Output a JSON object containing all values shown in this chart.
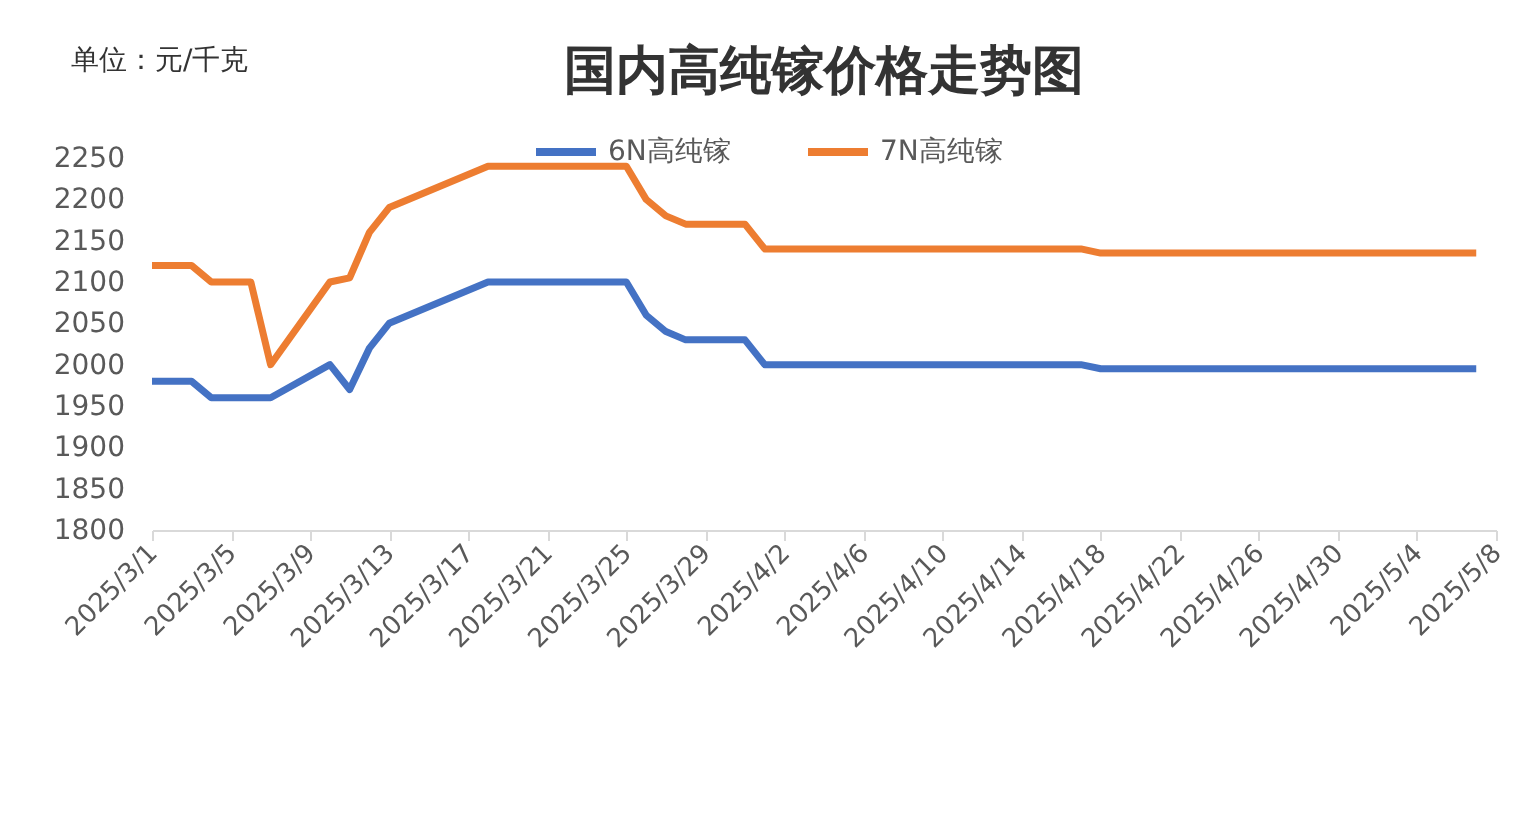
{
  "chart_data": {
    "type": "line",
    "title": "国内高纯镓价格走势图",
    "ylabel": "单位：元/千克",
    "xlim": [
      "2025-03-01",
      "2025-05-08"
    ],
    "xticks": [
      {
        "value": "2025-03-01",
        "label": "2025/3/1"
      },
      {
        "value": "2025-03-05",
        "label": "2025/3/5"
      },
      {
        "value": "2025-03-09",
        "label": "2025/3/9"
      },
      {
        "value": "2025-03-13",
        "label": "2025/3/13"
      },
      {
        "value": "2025-03-17",
        "label": "2025/3/17"
      },
      {
        "value": "2025-03-21",
        "label": "2025/3/21"
      },
      {
        "value": "2025-03-25",
        "label": "2025/3/25"
      },
      {
        "value": "2025-03-29",
        "label": "2025/3/29"
      },
      {
        "value": "2025-04-02",
        "label": "2025/4/2"
      },
      {
        "value": "2025-04-06",
        "label": "2025/4/6"
      },
      {
        "value": "2025-04-10",
        "label": "2025/4/10"
      },
      {
        "value": "2025-04-14",
        "label": "2025/4/14"
      },
      {
        "value": "2025-04-18",
        "label": "2025/4/18"
      },
      {
        "value": "2025-04-22",
        "label": "2025/4/22"
      },
      {
        "value": "2025-04-26",
        "label": "2025/4/26"
      },
      {
        "value": "2025-04-30",
        "label": "2025/4/30"
      },
      {
        "value": "2025-05-04",
        "label": "2025/5/4"
      },
      {
        "value": "2025-05-08",
        "label": "2025/5/8"
      }
    ],
    "ylim": [
      1800,
      2250
    ],
    "yticks": [
      1800,
      1850,
      1900,
      1950,
      2000,
      2050,
      2100,
      2150,
      2200,
      2250
    ],
    "grid": false,
    "legend": "top",
    "marker": "none",
    "line_style": "solid",
    "series": [
      {
        "name": "6N高纯镓",
        "color": "#4472c4",
        "x": [
          "2025-03-01",
          "2025-03-03",
          "2025-03-04",
          "2025-03-07",
          "2025-03-10",
          "2025-03-11",
          "2025-03-12",
          "2025-03-13",
          "2025-03-18",
          "2025-03-25",
          "2025-03-26",
          "2025-03-27",
          "2025-03-28",
          "2025-03-31",
          "2025-04-01",
          "2025-04-17",
          "2025-04-18",
          "2025-05-07"
        ],
        "values": [
          1980,
          1980,
          1960,
          1960,
          2000,
          1970,
          2020,
          2050,
          2100,
          2100,
          2060,
          2040,
          2030,
          2030,
          2000,
          2000,
          1995,
          1995
        ]
      },
      {
        "name": "7N高纯镓",
        "color": "#ed7d31",
        "x": [
          "2025-03-01",
          "2025-03-03",
          "2025-03-04",
          "2025-03-06",
          "2025-03-07",
          "2025-03-10",
          "2025-03-11",
          "2025-03-12",
          "2025-03-13",
          "2025-03-14",
          "2025-03-18",
          "2025-03-25",
          "2025-03-26",
          "2025-03-27",
          "2025-03-28",
          "2025-03-31",
          "2025-04-01",
          "2025-04-17",
          "2025-04-18",
          "2025-05-07"
        ],
        "values": [
          2120,
          2120,
          2100,
          2100,
          2000,
          2100,
          2105,
          2160,
          2190,
          2200,
          2240,
          2240,
          2200,
          2180,
          2170,
          2170,
          2140,
          2140,
          2135,
          2135
        ]
      }
    ]
  }
}
